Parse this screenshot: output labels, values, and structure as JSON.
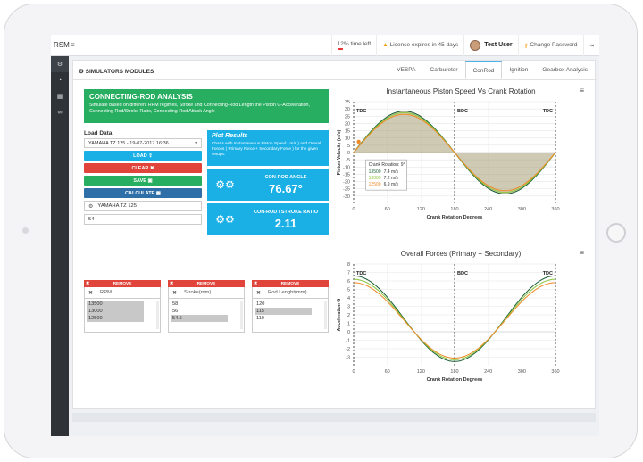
{
  "topbar": {
    "brand": "RSM",
    "time_left": "12% time left",
    "license": "License expires in 45 days",
    "user_name": "Test User",
    "change_password": "Change Password"
  },
  "module_title": "SIMULATORS MODULES",
  "tabs": [
    {
      "label": "VESPA",
      "active": false
    },
    {
      "label": "Carburetor",
      "active": false
    },
    {
      "label": "ConRod",
      "active": true
    },
    {
      "label": "Ignition",
      "active": false
    },
    {
      "label": "Gearbox Analysis",
      "active": false
    }
  ],
  "banner": {
    "title": "CONNECTING-ROD ANALYSIS",
    "text": "Simulate based on different RPM regimes, Stroke and Connecting-Rod Length the Piston G-Acceleration, Connecting-Rod/Stroke Ratio, Connecting-Rod Attack Angle"
  },
  "load": {
    "label": "Load Data",
    "selected": "YAMAHA TZ 125 - 19-07-2017 16:36",
    "load_btn": "LOAD",
    "clear_btn": "CLEAR",
    "save_btn": "SAVE",
    "calc_btn": "CALCULATE",
    "name_value": "YAMAHA TZ 125",
    "number_value": "54"
  },
  "plot_results": {
    "title": "Plot Results",
    "text": "Charts with Instantaneous Piston Speed ( m/s ) and Overall Forces ( Primary Force + Secondary Force ) for the given setups."
  },
  "metrics": [
    {
      "label": "CON-ROD ANGLE",
      "value": "76.67°"
    },
    {
      "label": "CON-ROD / STROKE RATIO",
      "value": "2.11"
    }
  ],
  "lists": [
    {
      "remove": "REMOVE",
      "placeholder": "RPM",
      "options": [
        "13500",
        "13000",
        "12500"
      ],
      "selected": [
        0,
        1,
        2
      ]
    },
    {
      "remove": "REMOVE",
      "placeholder": "Stroke(mm)",
      "options": [
        "58",
        "56",
        "54.5"
      ],
      "selected": [
        2
      ]
    },
    {
      "remove": "REMOVE",
      "placeholder": "Rod Lenght(mm)",
      "options": [
        "120",
        "115",
        "110"
      ],
      "selected": [
        1
      ]
    }
  ],
  "colors": {
    "series_1": "#1a5e35",
    "series_2": "#8cc63f",
    "series_3": "#f08a24",
    "blue": "#1ab0e6",
    "red": "#e0443a",
    "green": "#27ae60"
  },
  "chart_data": [
    {
      "type": "line",
      "title": "Instantaneous Piston Speed Vs Crank Rotation",
      "xlabel": "Crank Rotation Degrees",
      "ylabel": "Piston Velocity (m/s)",
      "xlim": [
        0,
        360
      ],
      "ylim": [
        -35,
        35
      ],
      "xticks": [
        0,
        60,
        120,
        180,
        240,
        300,
        360
      ],
      "yticks": [
        -30,
        -25,
        -20,
        -15,
        -10,
        -5,
        0,
        5,
        10,
        15,
        20,
        25,
        30,
        35
      ],
      "annotations": [
        {
          "x": 0,
          "label": "TDC"
        },
        {
          "x": 180,
          "label": "BDC"
        },
        {
          "x": 360,
          "label": "TDC"
        }
      ],
      "series": [
        {
          "name": "13500",
          "amplitude": 28.5
        },
        {
          "name": "13000",
          "amplitude": 27.4
        },
        {
          "name": "12500",
          "amplitude": 26.3
        }
      ],
      "tooltip": {
        "header": "Crank Rotation: 9°",
        "rows": [
          {
            "name": "13500",
            "value": "7.4 m/s"
          },
          {
            "name": "13000",
            "value": "7.2 m/s"
          },
          {
            "name": "12500",
            "value": "6.9 m/s"
          }
        ]
      }
    },
    {
      "type": "line",
      "title": "Overall Forces (Primary + Secondary)",
      "xlabel": "Crank Rotation Degrees",
      "ylabel": "Acceleration G",
      "xlim": [
        0,
        360
      ],
      "ylim": [
        -4,
        8
      ],
      "xticks": [
        0,
        60,
        120,
        180,
        240,
        300,
        360
      ],
      "yticks": [
        -3,
        -2,
        -1,
        0,
        1,
        2,
        3,
        4,
        5,
        6,
        7,
        8
      ],
      "annotations": [
        {
          "x": 0,
          "label": "TDC"
        },
        {
          "x": 180,
          "label": "BDC"
        },
        {
          "x": 360,
          "label": "TDC"
        }
      ],
      "series": [
        {
          "name": "13500",
          "peak": 6.6,
          "trough": -3.5
        },
        {
          "name": "13000",
          "peak": 6.2,
          "trough": -3.3
        },
        {
          "name": "12500",
          "peak": 5.8,
          "trough": -3.1
        }
      ]
    }
  ]
}
